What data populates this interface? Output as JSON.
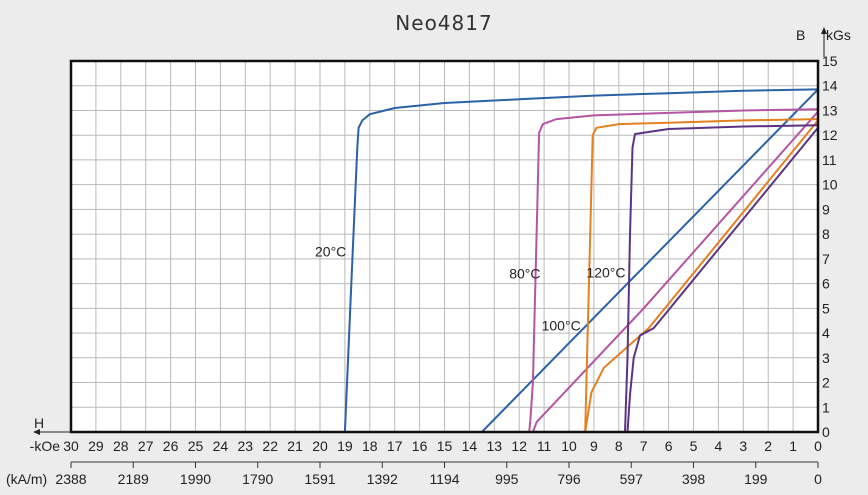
{
  "chart_data": {
    "type": "line",
    "title": "Neo4817",
    "x_axis": {
      "name": "H",
      "unit_label": "-kOe",
      "range": [
        0,
        30
      ],
      "ticks": [
        30,
        29,
        28,
        27,
        26,
        25,
        24,
        23,
        22,
        21,
        20,
        19,
        18,
        17,
        16,
        15,
        14,
        13,
        12,
        11,
        10,
        9,
        8,
        7,
        6,
        5,
        4,
        3,
        2,
        1,
        0
      ],
      "secondary_unit_label": "(kA/m)",
      "secondary_ticks": [
        {
          "koe": 30,
          "label": "2388"
        },
        {
          "koe": 27.5,
          "label": "2189"
        },
        {
          "koe": 25,
          "label": "1990"
        },
        {
          "koe": 22.5,
          "label": "1790"
        },
        {
          "koe": 20,
          "label": "1591"
        },
        {
          "koe": 17.5,
          "label": "1392"
        },
        {
          "koe": 15,
          "label": "1194"
        },
        {
          "koe": 12.5,
          "label": "995"
        },
        {
          "koe": 10,
          "label": "796"
        },
        {
          "koe": 7.5,
          "label": "597"
        },
        {
          "koe": 5,
          "label": "398"
        },
        {
          "koe": 2.5,
          "label": "199"
        },
        {
          "koe": 0,
          "label": "0"
        }
      ]
    },
    "y_axis": {
      "name": "B",
      "unit_label": "kGs",
      "range": [
        0,
        15
      ],
      "ticks": [
        0,
        1,
        2,
        3,
        4,
        5,
        6,
        7,
        8,
        9,
        10,
        11,
        12,
        13,
        14,
        15
      ]
    },
    "grid": true,
    "series": [
      {
        "name": "20°C",
        "color": "#2a62a8",
        "label_at": [
          20.2,
          7.3
        ],
        "intrinsic": [
          [
            0,
            13.85
          ],
          [
            3,
            13.8
          ],
          [
            6,
            13.7
          ],
          [
            9,
            13.6
          ],
          [
            12,
            13.45
          ],
          [
            15,
            13.3
          ],
          [
            17,
            13.1
          ],
          [
            18,
            12.85
          ],
          [
            18.3,
            12.6
          ],
          [
            18.45,
            12.3
          ],
          [
            18.5,
            11.5
          ],
          [
            18.7,
            7.0
          ],
          [
            19.0,
            0
          ]
        ],
        "normal": [
          [
            0,
            13.85
          ],
          [
            13.5,
            0
          ]
        ]
      },
      {
        "name": "80°C",
        "color": "#b455a3",
        "label_at": [
          12.4,
          6.4
        ],
        "intrinsic": [
          [
            0,
            13.05
          ],
          [
            3,
            13.0
          ],
          [
            6,
            12.9
          ],
          [
            9,
            12.8
          ],
          [
            10.5,
            12.65
          ],
          [
            11.05,
            12.45
          ],
          [
            11.2,
            12.1
          ],
          [
            11.3,
            8.0
          ],
          [
            11.45,
            2.0
          ],
          [
            11.55,
            0.5
          ],
          [
            11.6,
            0
          ]
        ],
        "normal": [
          [
            0,
            12.95
          ],
          [
            7.0,
            5.0
          ],
          [
            11.3,
            0.4
          ],
          [
            11.45,
            0
          ]
        ]
      },
      {
        "name": "120°C",
        "color": "#e5801f",
        "label_at": [
          9.3,
          6.45
        ],
        "intrinsic": [
          [
            0,
            12.65
          ],
          [
            3,
            12.6
          ],
          [
            6,
            12.5
          ],
          [
            8,
            12.45
          ],
          [
            8.9,
            12.3
          ],
          [
            9.05,
            12.0
          ],
          [
            9.15,
            8.0
          ],
          [
            9.3,
            2.0
          ],
          [
            9.35,
            0
          ]
        ],
        "normal": [
          [
            0,
            12.6
          ],
          [
            6.8,
            4.2
          ],
          [
            8.6,
            2.6
          ],
          [
            9.1,
            1.6
          ],
          [
            9.35,
            0
          ]
        ]
      },
      {
        "name": "100°C",
        "color": "#5c3384",
        "label_at": [
          11.1,
          4.3
        ],
        "intrinsic": [
          [
            0,
            12.4
          ],
          [
            3,
            12.35
          ],
          [
            6,
            12.25
          ],
          [
            7.35,
            12.05
          ],
          [
            7.45,
            11.5
          ],
          [
            7.55,
            8.0
          ],
          [
            7.65,
            3.0
          ],
          [
            7.75,
            0
          ]
        ],
        "normal": [
          [
            0,
            12.3
          ],
          [
            6.6,
            4.2
          ],
          [
            7.15,
            3.9
          ],
          [
            7.4,
            3.0
          ],
          [
            7.55,
            1.5
          ],
          [
            7.65,
            0
          ]
        ]
      }
    ]
  }
}
